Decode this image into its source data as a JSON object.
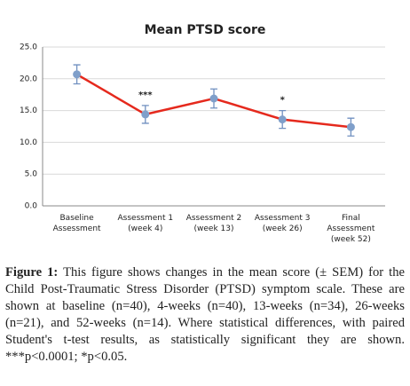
{
  "chart_data": {
    "type": "line",
    "title": "Mean PTSD score",
    "categories": [
      "Baseline Assessment",
      "Assessment 1 (week 4)",
      "Assessment 2 (week 13)",
      "Assessment 3 (week 26)",
      "Final Assessment (week 52)"
    ],
    "values": [
      20.7,
      14.4,
      16.9,
      13.6,
      12.4
    ],
    "errors": [
      1.5,
      1.4,
      1.5,
      1.4,
      1.4
    ],
    "annotations": [
      null,
      "***",
      null,
      "*",
      null
    ],
    "color": "#e5291d",
    "marker_color": "#7f9fca",
    "error_color": "#7090c0",
    "ylim": [
      0,
      25
    ],
    "yticks": [
      {
        "value": 0,
        "label": "0.0"
      },
      {
        "value": 5,
        "label": "5.0"
      },
      {
        "value": 10,
        "label": "10.0"
      },
      {
        "value": 15,
        "label": "15.0"
      },
      {
        "value": 20,
        "label": "20.0"
      },
      {
        "value": 25,
        "label": "25.0"
      }
    ],
    "grid": true
  },
  "caption": {
    "label": "Figure 1:",
    "text": "This figure shows changes in the mean score (± SEM) for the Child Post-Traumatic Stress Disorder (PTSD) symptom scale. These are shown at baseline (n=40), 4-weeks (n=40), 13-weeks (n=34), 26-weeks (n=21), and 52-weeks (n=14). Where statistical differences, with paired Student's t-test results, as statistically significant they are shown. ***p<0.0001; *p<0.05."
  }
}
